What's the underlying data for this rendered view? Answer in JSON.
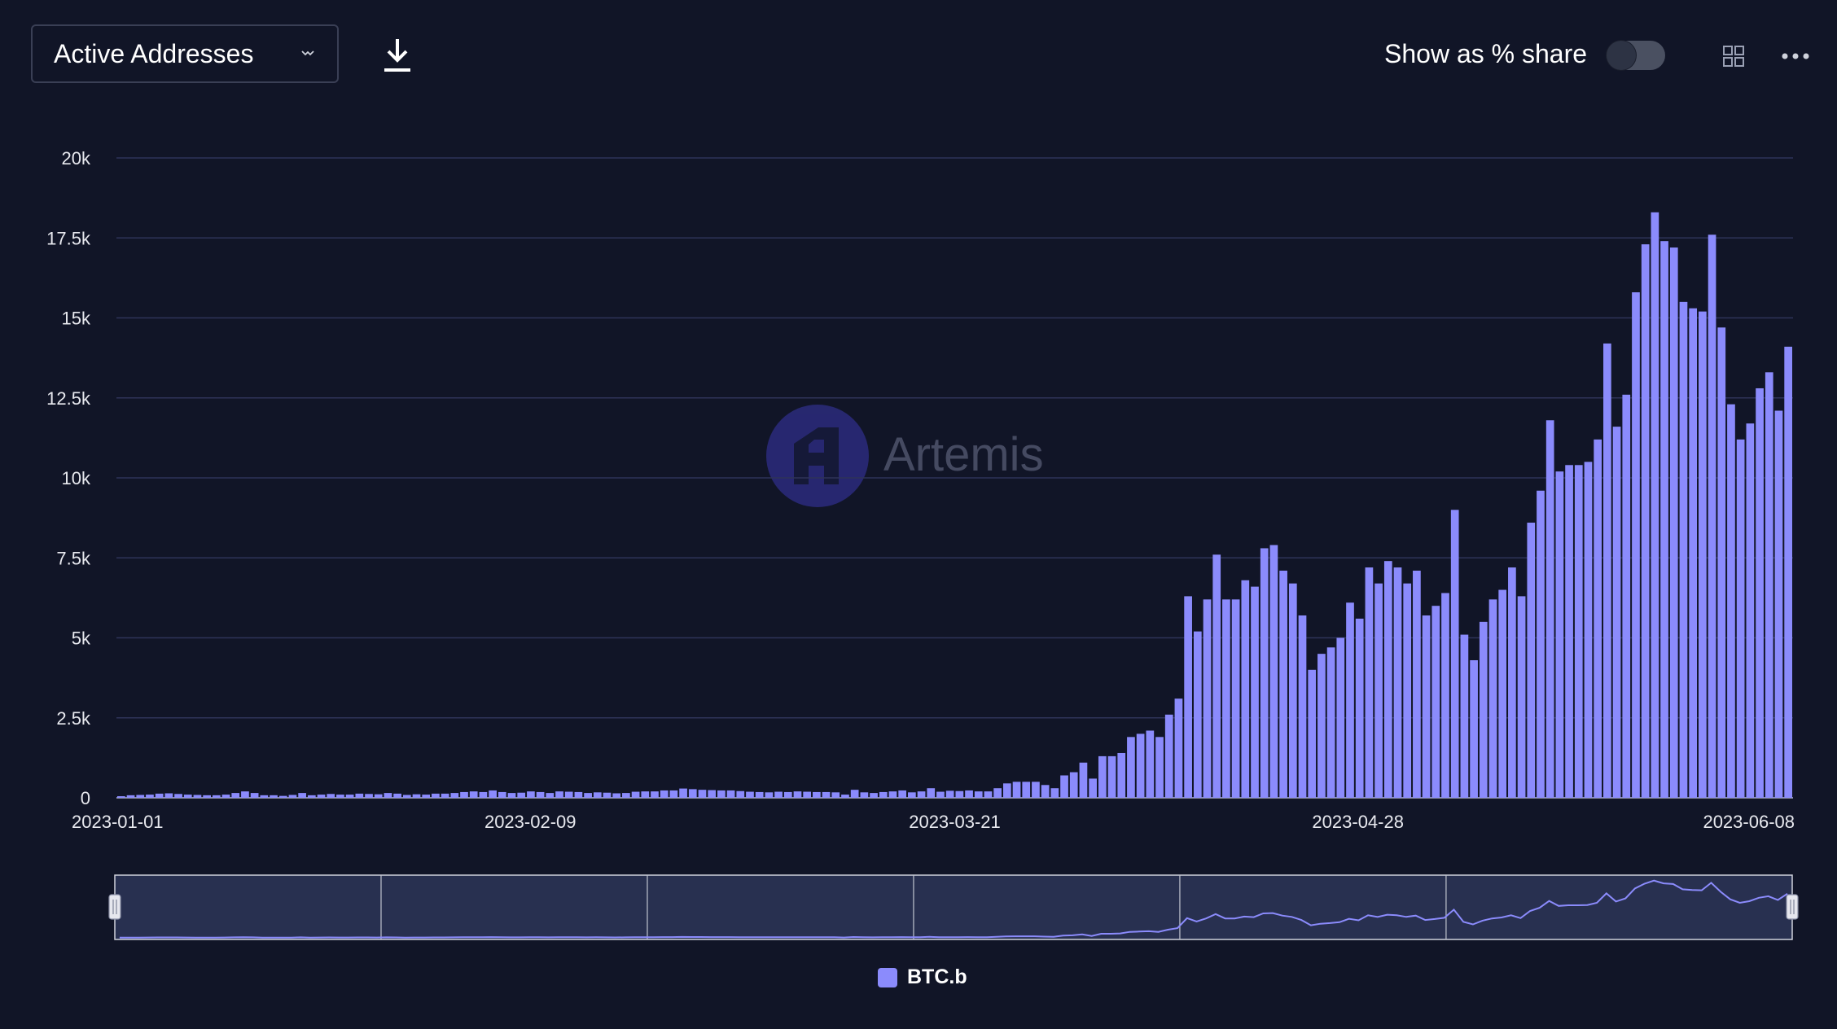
{
  "header": {
    "metric_select": {
      "label": "Active Addresses",
      "icon": "chevron-down-icon"
    },
    "download": {
      "icon": "download-icon"
    },
    "share_toggle": {
      "label": "Show as % share",
      "on": false
    },
    "grid": {
      "icon": "grid-icon"
    },
    "more": {
      "icon": "more-icon"
    }
  },
  "watermark": {
    "text": "Artemis"
  },
  "colors": {
    "bar": "#8b8bfc",
    "background": "#111527",
    "gridline": "#2e3358",
    "slider_bg": "#283050"
  },
  "chart_data": {
    "type": "bar",
    "title": "",
    "xlabel": "",
    "ylabel": "",
    "ylim": [
      0,
      20000
    ],
    "y_ticks": [
      "0",
      "2.5k",
      "5k",
      "7.5k",
      "10k",
      "12.5k",
      "15k",
      "17.5k",
      "20k"
    ],
    "x_tick_labels": [
      "2023-01-01",
      "2023-02-09",
      "2023-03-21",
      "2023-04-28",
      "2023-06-08"
    ],
    "x_start": "2023-01-01",
    "x_end": "2023-06-08",
    "grid": true,
    "legend_position": "bottom-center",
    "series": [
      {
        "name": "BTC.b",
        "color": "#8b8bfc",
        "values": [
          50,
          80,
          90,
          100,
          130,
          140,
          120,
          100,
          90,
          80,
          80,
          100,
          150,
          200,
          150,
          80,
          80,
          60,
          90,
          150,
          80,
          100,
          120,
          100,
          100,
          130,
          120,
          110,
          150,
          130,
          90,
          110,
          100,
          130,
          130,
          150,
          180,
          200,
          180,
          230,
          180,
          150,
          160,
          200,
          180,
          150,
          200,
          190,
          180,
          150,
          170,
          160,
          140,
          150,
          190,
          200,
          200,
          230,
          230,
          290,
          270,
          250,
          240,
          230,
          230,
          210,
          190,
          180,
          170,
          190,
          180,
          200,
          190,
          180,
          180,
          170,
          100,
          250,
          170,
          150,
          180,
          200,
          230,
          170,
          200,
          300,
          190,
          220,
          210,
          230,
          200,
          200,
          300,
          450,
          500,
          500,
          500,
          400,
          300,
          700,
          800,
          1100,
          600,
          1300,
          1300,
          1400,
          1900,
          2000,
          2100,
          1900,
          2600,
          3100,
          6300,
          5200,
          6200,
          7600,
          6200,
          6200,
          6800,
          6600,
          7800,
          7900,
          7100,
          6700,
          5700,
          4000,
          4500,
          4700,
          5000,
          6100,
          5600,
          7200,
          6700,
          7400,
          7200,
          6700,
          7100,
          5700,
          6000,
          6400,
          9000,
          5100,
          4300,
          5500,
          6200,
          6500,
          7200,
          6300,
          8600,
          9600,
          11800,
          10200,
          10400,
          10400,
          10500,
          11200,
          14200,
          11600,
          12600,
          15800,
          17300,
          18300,
          17400,
          17200,
          15500,
          15300,
          15200,
          17600,
          14700,
          12300,
          11200,
          11700,
          12800,
          13300,
          12100,
          14100
        ]
      }
    ]
  }
}
